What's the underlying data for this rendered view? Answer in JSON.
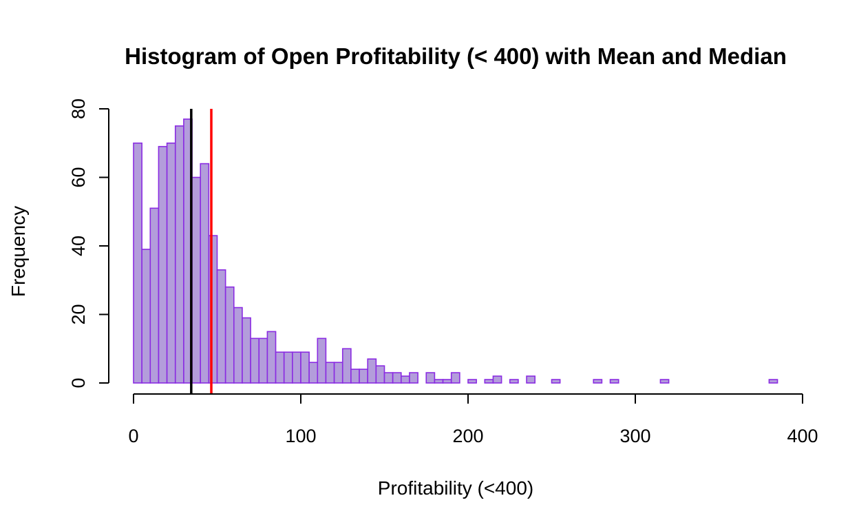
{
  "chart_data": {
    "type": "bar",
    "title": "Histogram of Open Profitability (< 400) with Mean and Median",
    "xlabel": "Profitability (<400)",
    "ylabel": "Frequency",
    "xlim": [
      0,
      400
    ],
    "ylim": [
      0,
      80
    ],
    "bin_width": 5,
    "bin_start": 0,
    "xticks": [
      "0",
      "100",
      "200",
      "300",
      "400"
    ],
    "yticks": [
      "0",
      "20",
      "40",
      "60",
      "80"
    ],
    "values": [
      70,
      39,
      51,
      69,
      70,
      75,
      77,
      60,
      64,
      43,
      33,
      28,
      22,
      19,
      13,
      13,
      15,
      9,
      9,
      9,
      9,
      6,
      13,
      6,
      6,
      10,
      4,
      4,
      7,
      5,
      3,
      3,
      2,
      3,
      0,
      3,
      1,
      1,
      3,
      0,
      1,
      0,
      1,
      2,
      0,
      1,
      0,
      2,
      0,
      0,
      1,
      0,
      0,
      0,
      0,
      1,
      0,
      1,
      0,
      0,
      0,
      0,
      0,
      1,
      0,
      0,
      0,
      0,
      0,
      0,
      0,
      0,
      0,
      0,
      0,
      0,
      1
    ],
    "bar_fill": "#b39ddb",
    "bar_stroke": "#8a2be2",
    "median": 34.5,
    "median_color": "#000000",
    "mean": 46.5,
    "mean_color": "#ff0000",
    "grid": false
  }
}
